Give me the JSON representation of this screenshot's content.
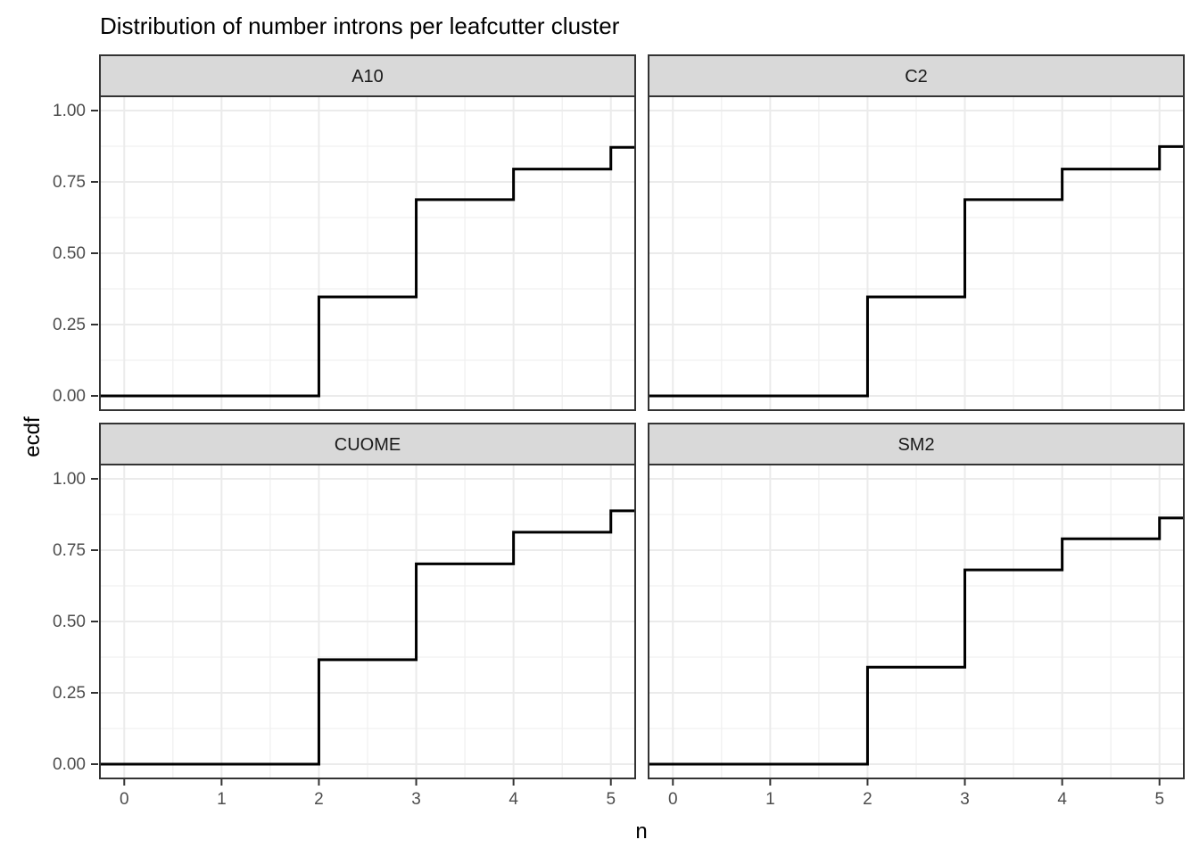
{
  "title": "Distribution of number introns per leafcutter cluster",
  "axes": {
    "x_label": "n",
    "y_label": "ecdf",
    "x_ticks": [
      {
        "value": 0,
        "label": "0"
      },
      {
        "value": 1,
        "label": "1"
      },
      {
        "value": 2,
        "label": "2"
      },
      {
        "value": 3,
        "label": "3"
      },
      {
        "value": 4,
        "label": "4"
      },
      {
        "value": 5,
        "label": "5"
      }
    ],
    "y_ticks": [
      {
        "value": 0.0,
        "label": "0.00"
      },
      {
        "value": 0.25,
        "label": "0.25"
      },
      {
        "value": 0.5,
        "label": "0.50"
      },
      {
        "value": 0.75,
        "label": "0.75"
      },
      {
        "value": 1.0,
        "label": "1.00"
      }
    ]
  },
  "colors": {
    "background": "#ffffff",
    "panel_fill": "#ffffff",
    "strip_fill": "#d9d9d9",
    "border": "#333333",
    "grid_major": "#ebebeb",
    "grid_minor": "#f0f0f0",
    "line": "#000000",
    "tick_mark": "#333333",
    "tick_text": "#4d4d4d",
    "strip_text": "#1a1a1a",
    "title_text": "#000000"
  },
  "chart_data": {
    "type": "line",
    "variant": "step-ecdf-faceted",
    "title": "Distribution of number introns per leafcutter cluster",
    "xlabel": "n",
    "ylabel": "ecdf",
    "facet_grid": {
      "rows": 2,
      "cols": 2
    },
    "xlim": [
      -0.25,
      5.25
    ],
    "ylim": [
      -0.05,
      1.05
    ],
    "grid": "on",
    "legend": "none",
    "x_major": [
      0,
      1,
      2,
      3,
      4,
      5
    ],
    "x_minor": [
      0.5,
      1.5,
      2.5,
      3.5,
      4.5
    ],
    "y_major": [
      0,
      0.25,
      0.5,
      0.75,
      1.0
    ],
    "y_minor": [
      0.125,
      0.375,
      0.625,
      0.875
    ],
    "x_start": -0.25,
    "x_end": 5.25,
    "y_start": 0,
    "facets": [
      {
        "label": "A10",
        "step_x": [
          2,
          3,
          4,
          5
        ],
        "ecdf_after_step": [
          0.347,
          0.688,
          0.795,
          0.871
        ]
      },
      {
        "label": "C2",
        "step_x": [
          2,
          3,
          4,
          5
        ],
        "ecdf_after_step": [
          0.347,
          0.688,
          0.795,
          0.874
        ]
      },
      {
        "label": "CUOME",
        "step_x": [
          2,
          3,
          4,
          5
        ],
        "ecdf_after_step": [
          0.366,
          0.702,
          0.813,
          0.888
        ]
      },
      {
        "label": "SM2",
        "step_x": [
          2,
          3,
          4,
          5
        ],
        "ecdf_after_step": [
          0.34,
          0.681,
          0.79,
          0.863
        ]
      }
    ]
  }
}
